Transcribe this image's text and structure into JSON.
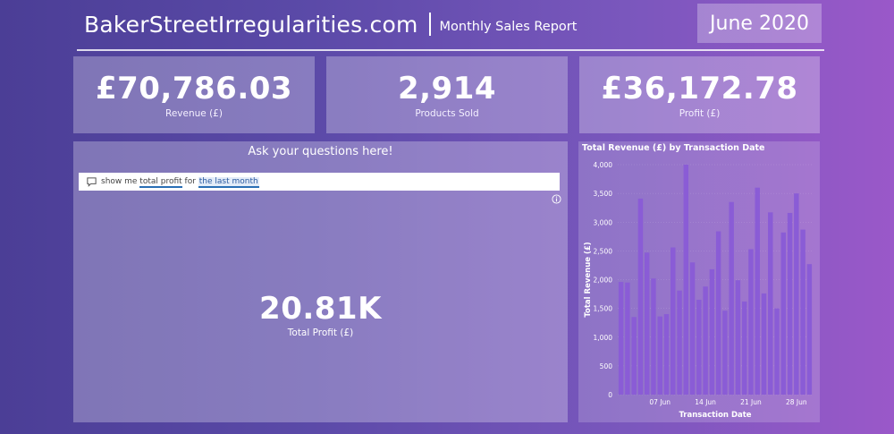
{
  "header": {
    "brand": "BakerStreetIrregularities.com",
    "subtitle": "Monthly Sales Report",
    "month": "June 2020"
  },
  "kpis": [
    {
      "value": "£70,786.03",
      "label": "Revenue (£)"
    },
    {
      "value": "2,914",
      "label": "Products Sold"
    },
    {
      "value": "£36,172.78",
      "label": "Profit (£)"
    }
  ],
  "qa": {
    "heading": "Ask your questions here!",
    "query_prefix": "show me ",
    "query_term1": "total profit",
    "query_mid": " for ",
    "query_term2": "the last month",
    "result_value": "20.81K",
    "result_label": "Total Profit (£)"
  },
  "colors": {
    "bar": "#8a5cd6",
    "input_underline": "#2a6fb5"
  },
  "chart_data": {
    "type": "bar",
    "title": "Total Revenue (£) by Transaction Date",
    "xlabel": "Transaction Date",
    "ylabel": "Total Revenue (£)",
    "ylim": [
      0,
      4000
    ],
    "yticks": [
      0,
      500,
      1000,
      1500,
      2000,
      2500,
      3000,
      3500,
      4000
    ],
    "ytick_labels": [
      "0",
      "500",
      "1,000",
      "1,500",
      "2,000",
      "2,500",
      "3,000",
      "3,500",
      "4,000"
    ],
    "x": [
      "2020-06-01",
      "2020-06-02",
      "2020-06-03",
      "2020-06-04",
      "2020-06-05",
      "2020-06-06",
      "2020-06-07",
      "2020-06-08",
      "2020-06-09",
      "2020-06-10",
      "2020-06-11",
      "2020-06-12",
      "2020-06-13",
      "2020-06-14",
      "2020-06-15",
      "2020-06-16",
      "2020-06-17",
      "2020-06-18",
      "2020-06-19",
      "2020-06-20",
      "2020-06-21",
      "2020-06-22",
      "2020-06-23",
      "2020-06-24",
      "2020-06-25",
      "2020-06-26",
      "2020-06-27",
      "2020-06-28",
      "2020-06-29",
      "2020-06-30"
    ],
    "values": [
      1960,
      1950,
      1350,
      3410,
      2470,
      2020,
      1360,
      1400,
      2560,
      1810,
      4000,
      2300,
      1650,
      1880,
      2180,
      2840,
      1460,
      3350,
      1990,
      1620,
      2530,
      3600,
      1760,
      3170,
      1500,
      2820,
      3160,
      3500,
      2870,
      2270
    ],
    "xtick_labels": [
      {
        "label": "07 Jun",
        "index": 6
      },
      {
        "label": "14 Jun",
        "index": 13
      },
      {
        "label": "21 Jun",
        "index": 20
      },
      {
        "label": "28 Jun",
        "index": 27
      }
    ],
    "grid": true
  }
}
